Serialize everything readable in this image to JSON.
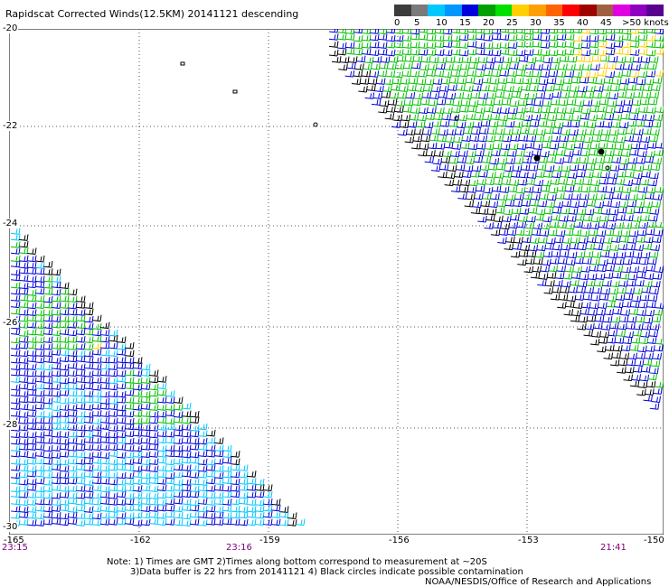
{
  "title": "Rapidscat Corrected Winds(12.5KM) 20141121 descending",
  "legend": {
    "colors": [
      "#3c3c3c",
      "#7a7a7a",
      "#00c8ff",
      "#0096ff",
      "#0000dc",
      "#00a000",
      "#00e000",
      "#ffd000",
      "#ffa000",
      "#ff6400",
      "#ff0000",
      "#a00000",
      "#a06040",
      "#e000e0",
      "#9000c0",
      "#5a0090"
    ],
    "labels": [
      "0",
      "5",
      "10",
      "15",
      "20",
      "25",
      "30",
      "35",
      "40",
      "45",
      ">50 knots"
    ]
  },
  "map": {
    "lat_labels": [
      "-20",
      "-22",
      "-24",
      "-26",
      "-28",
      "-30"
    ],
    "lon_labels": [
      "-165",
      "-162",
      "-159",
      "-156",
      "-153",
      "-150"
    ],
    "time_labels": [
      "23:15",
      "23:16",
      "21:41"
    ],
    "wind_colors": {
      "calm": "#000000",
      "light": "#00c8ff",
      "moderate": "#0000dc",
      "fresh": "#00c000",
      "strong": "#ffd000",
      "rain_flag": "#ff4000"
    }
  },
  "notes": {
    "line1": "Note: 1) Times are GMT 2)Times along bottom correspond to measurement at ~20S",
    "line2": "3)Data buffer is 22 hrs from 20141121 4) Black circles indicate possible contamination",
    "line3": "NOAA/NESDIS/Office of Research and Applications"
  }
}
